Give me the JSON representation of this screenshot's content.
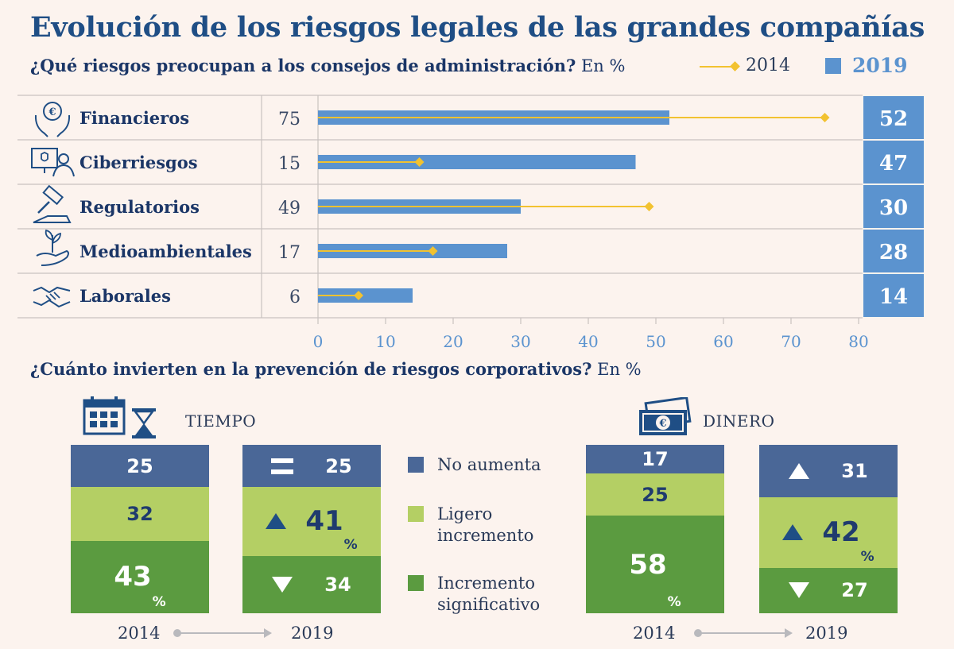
{
  "title": "Evolución de los riesgos legales de las grandes compañías",
  "subtitle1": {
    "bold": "¿Qué riesgos preocupan a los consejos de administración?",
    "unit": "En %"
  },
  "subtitle2": {
    "bold": "¿Cuánto invierten en la prevención de riesgos corporativos?",
    "unit": "En %"
  },
  "legend_top": {
    "s2014": "2014",
    "s2019": "2019"
  },
  "colors": {
    "bar2019": "#5b93cf",
    "line2014": "#f2c230",
    "no_aumenta": "#4a6797",
    "ligero": "#b4cf64",
    "significativo": "#5b9b40",
    "bg": "#fcf3ee"
  },
  "chart_data": [
    {
      "type": "bar",
      "title": "¿Qué riesgos preocupan a los consejos de administración?",
      "categories": [
        "Financieros",
        "Ciberriesgos",
        "Regulatorios",
        "Medioambientales",
        "Laborales"
      ],
      "icons": [
        "money-hands-icon",
        "cyber-person-icon",
        "gavel-icon",
        "plant-hand-icon",
        "handshake-icon"
      ],
      "series": [
        {
          "name": "2014",
          "values": [
            75,
            15,
            49,
            17,
            6
          ],
          "style": "line-diamond"
        },
        {
          "name": "2019",
          "values": [
            52,
            47,
            30,
            28,
            14
          ],
          "style": "bar"
        }
      ],
      "xlim": [
        0,
        80
      ],
      "xticks": [
        "0",
        "10",
        "20",
        "30",
        "40",
        "50",
        "60",
        "70",
        "80"
      ]
    },
    {
      "type": "bar",
      "title": "¿Cuánto invierten en la prevención de riesgos corporativos?",
      "stacked": true,
      "groups": [
        {
          "name": "TIEMPO",
          "columns": [
            {
              "year": "2014",
              "values": {
                "no_aumenta": 25,
                "ligero": 32,
                "significativo": 43
              }
            },
            {
              "year": "2019",
              "values": {
                "no_aumenta": 25,
                "ligero": 41,
                "significativo": 34
              }
            }
          ]
        },
        {
          "name": "DINERO",
          "columns": [
            {
              "year": "2014",
              "values": {
                "no_aumenta": 17,
                "ligero": 25,
                "significativo": 58
              }
            },
            {
              "year": "2019",
              "values": {
                "no_aumenta": 31,
                "ligero": 42,
                "significativo": 27
              }
            }
          ]
        }
      ],
      "legend": [
        "No aumenta",
        "Ligero incremento",
        "Incremento significativo"
      ]
    }
  ],
  "stack_labels": {
    "t2014": {
      "a": "25",
      "b": "32",
      "c": "43",
      "c_pct": "%"
    },
    "t2019": {
      "a": "25",
      "b": "41",
      "b_pct": "%",
      "c": "34"
    },
    "d2014": {
      "a": "17",
      "b": "25",
      "c": "58",
      "c_pct": "%"
    },
    "d2019": {
      "a": "31",
      "b": "42",
      "b_pct": "%",
      "c": "27"
    }
  },
  "section_labels": {
    "tiempo": "TIEMPO",
    "dinero": "DINERO"
  },
  "years": {
    "y2014": "2014",
    "y2019": "2019"
  },
  "legend2": {
    "no_aumenta": "No aumenta",
    "ligero": "Ligero incremento",
    "significativo": "Incremento significativo"
  }
}
